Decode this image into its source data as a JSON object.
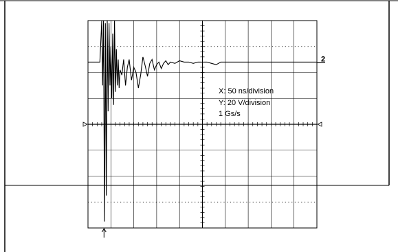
{
  "chart_data": {
    "type": "line",
    "title": "",
    "xlabel": "",
    "ylabel": "",
    "grid": true,
    "x_divisions": 10,
    "y_divisions": 8,
    "x_unit": "ns",
    "y_unit": "V",
    "x_per_division": 50,
    "y_per_division": 20,
    "xlim": [
      0,
      500
    ],
    "ylim": [
      -80,
      80
    ],
    "channel_marker": "2",
    "channel_offset_volts": 48,
    "trigger_time_ns": 35,
    "annotations": [
      "X: 50 ns/division",
      "Y: 20 V/division",
      "1 Gs/s"
    ],
    "series": [
      {
        "x": [
          0,
          10,
          20,
          26,
          30,
          32,
          34,
          36,
          38,
          40,
          42,
          44,
          46,
          48,
          50,
          52,
          54,
          56,
          58,
          60,
          62,
          64,
          66,
          68,
          70,
          74,
          78,
          82,
          86,
          90,
          95,
          100,
          105,
          110,
          115,
          120,
          125,
          130,
          135,
          140,
          145,
          150,
          155,
          160,
          165,
          170,
          175,
          180,
          190,
          200,
          210,
          220,
          230,
          240,
          250,
          260,
          270,
          280,
          290,
          300,
          320,
          340,
          360,
          380,
          400,
          420,
          440,
          460,
          480,
          500
        ],
        "y": [
          48,
          48,
          48,
          48,
          80,
          30,
          80,
          -75,
          78,
          -55,
          80,
          10,
          78,
          30,
          60,
          20,
          70,
          15,
          80,
          25,
          58,
          30,
          50,
          28,
          42,
          38,
          50,
          30,
          44,
          50,
          34,
          44,
          40,
          28,
          38,
          52,
          45,
          37,
          47,
          50,
          42,
          46,
          48,
          43,
          47,
          49,
          46,
          48,
          47,
          49,
          48,
          48,
          47,
          48,
          48,
          48,
          47,
          46,
          48,
          48,
          48,
          48,
          48,
          48,
          48,
          48,
          48,
          48,
          48,
          48
        ]
      }
    ]
  }
}
